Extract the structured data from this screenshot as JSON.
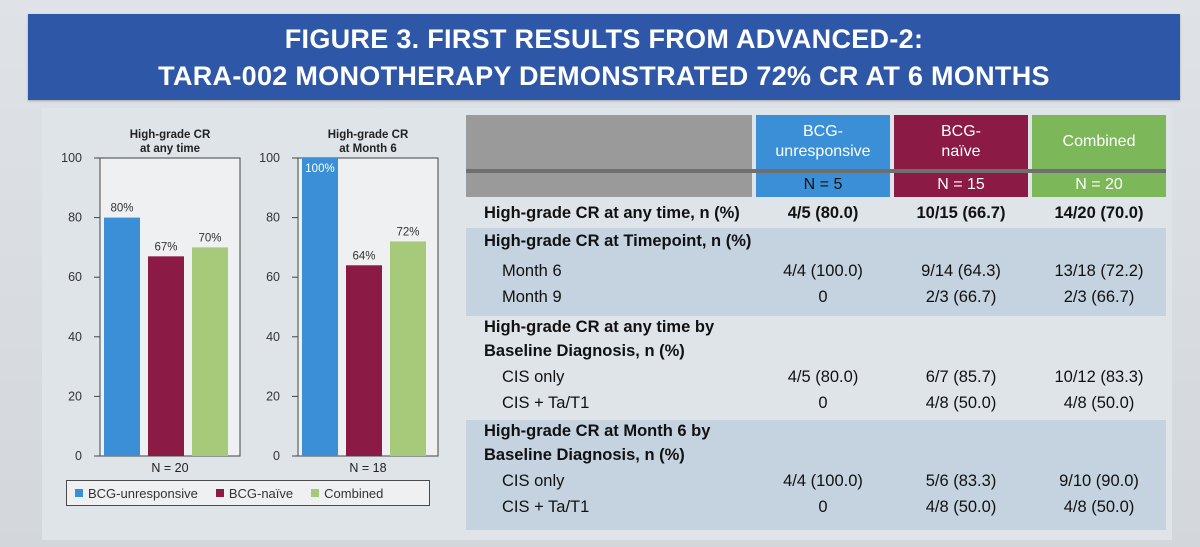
{
  "figure": {
    "title_line1": "FIGURE 3. FIRST RESULTS FROM ADVANCED-2:",
    "title_line2": "TARA-002 MONOTHERAPY DEMONSTRATED 72% CR AT 6 MONTHS"
  },
  "colors": {
    "bcg_unresponsive": "#3b8fd6",
    "bcg_naive": "#8b1a45",
    "combined": "#a7c97a",
    "banner": "#2f57a8"
  },
  "chart_data": [
    {
      "type": "bar",
      "title_line1": "High-grade CR",
      "title_line2": "at any time",
      "categories": [
        "BCG-unresponsive",
        "BCG-naïve",
        "Combined"
      ],
      "values": [
        80,
        67,
        70
      ],
      "data_labels": [
        "80%",
        "67%",
        "70%"
      ],
      "n_label": "N = 20",
      "ylim": [
        0,
        100
      ],
      "yticks": [
        0,
        20,
        40,
        60,
        80,
        100
      ]
    },
    {
      "type": "bar",
      "title_line1": "High-grade CR",
      "title_line2": "at Month 6",
      "categories": [
        "BCG-unresponsive",
        "BCG-naïve",
        "Combined"
      ],
      "values": [
        100,
        64,
        72
      ],
      "data_labels": [
        "100%",
        "64%",
        "72%"
      ],
      "n_label": "N = 18",
      "ylim": [
        0,
        100
      ],
      "yticks": [
        0,
        20,
        40,
        60,
        80,
        100
      ]
    }
  ],
  "legend": [
    {
      "label": "BCG-unresponsive",
      "color": "#3b8fd6"
    },
    {
      "label": "BCG-naïve",
      "color": "#8b1a45"
    },
    {
      "label": "Combined",
      "color": "#a7c97a"
    }
  ],
  "table": {
    "headers": [
      {
        "line1": "BCG-",
        "line2": "unresponsive",
        "n": "N = 5"
      },
      {
        "line1": "BCG-",
        "line2": "naïve",
        "n": "N = 15"
      },
      {
        "line1": "Combined",
        "line2": "",
        "n": "N = 20"
      }
    ],
    "rows": [
      {
        "label": "High-grade CR at any time, n (%)",
        "values": [
          "4/5 (80.0)",
          "10/15 (66.7)",
          "14/20 (70.0)"
        ]
      },
      {
        "label": "High-grade CR at Timepoint, n (%)",
        "values": [
          "",
          "",
          ""
        ]
      },
      {
        "label": "Month 6",
        "values": [
          "4/4 (100.0)",
          "9/14 (64.3)",
          "13/18 (72.2)"
        ]
      },
      {
        "label": "Month 9",
        "values": [
          "0",
          "2/3 (66.7)",
          "2/3 (66.7)"
        ]
      },
      {
        "label": "High-grade CR at any time by",
        "values": [
          "",
          "",
          ""
        ]
      },
      {
        "label": "Baseline Diagnosis, n (%)",
        "values": [
          "",
          "",
          ""
        ]
      },
      {
        "label": "CIS only",
        "values": [
          "4/5 (80.0)",
          "6/7 (85.7)",
          "10/12 (83.3)"
        ]
      },
      {
        "label": "CIS + Ta/T1",
        "values": [
          "0",
          "4/8 (50.0)",
          "4/8 (50.0)"
        ]
      },
      {
        "label": "High-grade CR at Month 6 by",
        "values": [
          "",
          "",
          ""
        ]
      },
      {
        "label": "Baseline Diagnosis, n (%)",
        "values": [
          "",
          "",
          ""
        ]
      },
      {
        "label": "CIS only",
        "values": [
          "4/4 (100.0)",
          "5/6 (83.3)",
          "9/10 (90.0)"
        ]
      },
      {
        "label": "CIS + Ta/T1",
        "values": [
          "0",
          "4/8 (50.0)",
          "4/8 (50.0)"
        ]
      }
    ]
  }
}
